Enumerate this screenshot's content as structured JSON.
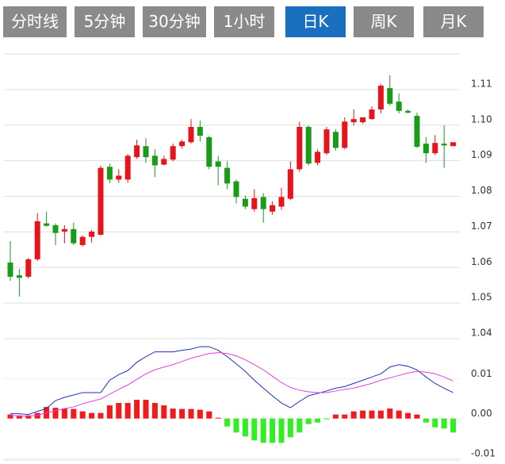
{
  "tabs": [
    "分时线",
    "5分钟",
    "30分钟",
    "1小时",
    "日K",
    "周K",
    "月K"
  ],
  "active_tab": 4,
  "chart_data": [
    {
      "type": "candlestick",
      "up_color": "#e8141b",
      "down_color": "#1a9b1a",
      "ylim": [
        1.04,
        1.12
      ],
      "yticks": [
        1.04,
        1.05,
        1.06,
        1.07,
        1.08,
        1.09,
        {
          "value": 1.1,
          "label": "1.10"
        },
        1.11
      ],
      "grid": true,
      "open": [
        1.0614,
        1.0578,
        1.0574,
        1.0623,
        1.0724,
        1.0719,
        1.0701,
        1.0708,
        1.0663,
        1.0686,
        1.0692,
        1.0883,
        1.0847,
        1.0847,
        1.091,
        1.0941,
        1.0914,
        1.0889,
        1.0903,
        1.0941,
        1.0952,
        1.0995,
        1.0966,
        1.0898,
        1.088,
        1.0842,
        1.0793,
        1.0764,
        1.0798,
        1.0757,
        1.0771,
        1.0793,
        1.0876,
        1.0995,
        1.0894,
        1.0921,
        1.0981,
        1.0936,
        1.1008,
        1.1008,
        1.1017,
        1.1044,
        1.1104,
        1.1066,
        1.104,
        1.1026,
        1.0948,
        1.0921,
        1.0948,
        1.0941
      ],
      "high": [
        1.0674,
        1.0596,
        1.0627,
        1.0753,
        1.0757,
        1.0724,
        1.0719,
        1.0726,
        1.069,
        1.0706,
        1.0887,
        1.0892,
        1.0876,
        1.0919,
        1.0959,
        1.0963,
        1.0932,
        1.0914,
        1.0948,
        1.0959,
        1.1017,
        1.1013,
        1.097,
        1.0914,
        1.0898,
        1.0847,
        1.0802,
        1.082,
        1.0809,
        1.0786,
        1.0824,
        1.0898,
        1.101,
        1.0999,
        1.0932,
        1.0995,
        1.0988,
        1.1022,
        1.1044,
        1.1022,
        1.1053,
        1.1116,
        1.114,
        1.1089,
        1.1044,
        1.1035,
        1.0966,
        1.0972,
        1.0999,
        1.0952
      ],
      "low": [
        1.0562,
        1.0518,
        1.0569,
        1.0618,
        1.0715,
        1.0663,
        1.0668,
        1.0663,
        1.0659,
        1.067,
        1.069,
        1.0838,
        1.0838,
        1.0838,
        1.0905,
        1.0894,
        1.0854,
        1.0887,
        1.0898,
        1.0934,
        1.0948,
        1.0954,
        1.0876,
        1.0831,
        1.082,
        1.078,
        1.0764,
        1.0757,
        1.0726,
        1.0748,
        1.0762,
        1.0789,
        1.0869,
        1.0887,
        1.0887,
        1.0916,
        1.0928,
        1.0932,
        1.0999,
        1.1004,
        1.1015,
        1.1033,
        1.1055,
        1.1033,
        1.1033,
        1.0936,
        1.0894,
        1.0916,
        1.088,
        1.0941
      ],
      "close": [
        1.0574,
        1.0571,
        1.0623,
        1.073,
        1.0717,
        1.0697,
        1.0708,
        1.0668,
        1.0686,
        1.0701,
        1.088,
        1.0847,
        1.0858,
        1.0914,
        1.0943,
        1.091,
        1.0887,
        1.0905,
        1.0941,
        1.0954,
        1.0995,
        1.097,
        1.0883,
        1.0883,
        1.0836,
        1.0798,
        1.0771,
        1.0795,
        1.0764,
        1.0775,
        1.0798,
        1.0876,
        1.0995,
        1.0892,
        1.0925,
        1.0988,
        1.0936,
        1.101,
        1.1017,
        1.1022,
        1.1044,
        1.1111,
        1.106,
        1.104,
        1.1035,
        1.0939,
        1.0921,
        1.095,
        1.0943,
        1.0952
      ]
    },
    {
      "type": "macd",
      "up_color": "#f21a1a",
      "down_color": "#33ee22",
      "dif_color": "#1f2fbf",
      "dea_color": "#e040e0",
      "ylim": [
        -0.01,
        0.02
      ],
      "yticks": [
        0.01,
        {
          "value": 0,
          "label": "0.00"
        },
        -0.01
      ],
      "grid": true,
      "hist": [
        0.001,
        0.0008,
        0.0008,
        0.0014,
        0.0029,
        0.0027,
        0.0025,
        0.0024,
        0.0018,
        0.0014,
        0.0014,
        0.0033,
        0.0039,
        0.0039,
        0.0047,
        0.0047,
        0.0039,
        0.0033,
        0.0025,
        0.0024,
        0.0024,
        0.0022,
        0.0018,
        0.0002,
        -0.002,
        -0.0035,
        -0.0045,
        -0.0055,
        -0.0061,
        -0.0061,
        -0.0061,
        -0.0047,
        -0.0035,
        -0.0014,
        -0.001,
        -0.0002,
        0.001,
        0.001,
        0.0018,
        0.002,
        0.002,
        0.002,
        0.0025,
        0.002,
        0.0014,
        0.001,
        -0.001,
        -0.0022,
        -0.0025,
        -0.0035
      ],
      "dif": [
        0.0012,
        0.0012,
        0.001,
        0.0018,
        0.0025,
        0.0045,
        0.0053,
        0.0059,
        0.0065,
        0.0065,
        0.0065,
        0.0096,
        0.011,
        0.012,
        0.0141,
        0.0155,
        0.0167,
        0.0167,
        0.0167,
        0.0171,
        0.0174,
        0.018,
        0.018,
        0.0171,
        0.0155,
        0.0137,
        0.0118,
        0.0096,
        0.0076,
        0.0057,
        0.0039,
        0.0027,
        0.0043,
        0.0057,
        0.0063,
        0.0069,
        0.0076,
        0.008,
        0.0088,
        0.0096,
        0.0104,
        0.0112,
        0.0129,
        0.0135,
        0.0131,
        0.0122,
        0.0104,
        0.0088,
        0.0076,
        0.0065
      ],
      "dea": [
        0.0008,
        0.0006,
        0.0006,
        0.0008,
        0.0014,
        0.002,
        0.0025,
        0.0029,
        0.0037,
        0.0043,
        0.0049,
        0.0061,
        0.0073,
        0.0084,
        0.0098,
        0.0112,
        0.0122,
        0.0129,
        0.0135,
        0.0143,
        0.0151,
        0.0157,
        0.0163,
        0.0165,
        0.0163,
        0.0157,
        0.0147,
        0.0135,
        0.0122,
        0.0106,
        0.009,
        0.0078,
        0.0071,
        0.0067,
        0.0065,
        0.0065,
        0.0069,
        0.0073,
        0.0076,
        0.0082,
        0.0088,
        0.0096,
        0.0102,
        0.0108,
        0.0114,
        0.0118,
        0.0116,
        0.0112,
        0.0104,
        0.0094
      ]
    }
  ]
}
